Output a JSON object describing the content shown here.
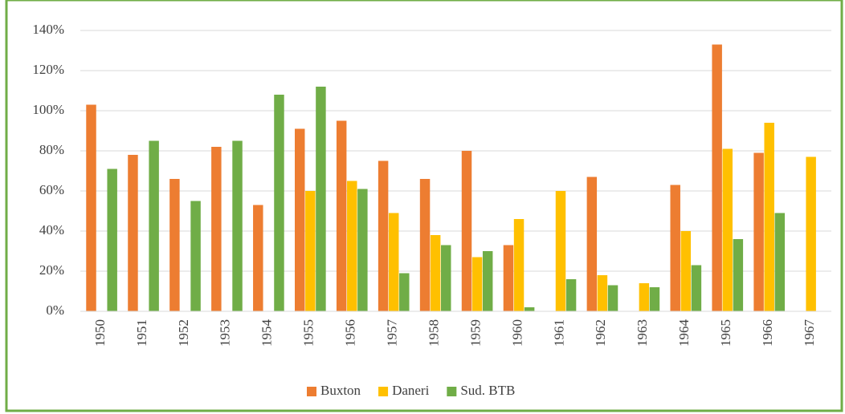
{
  "chart_data": {
    "type": "bar",
    "categories": [
      "1950",
      "1951",
      "1952",
      "1953",
      "1954",
      "1955",
      "1956",
      "1957",
      "1958",
      "1959",
      "1960",
      "1961",
      "1962",
      "1963",
      "1964",
      "1965",
      "1966",
      "1967"
    ],
    "series": [
      {
        "name": "Buxton",
        "color": "#ed7d31",
        "values": [
          103,
          78,
          66,
          82,
          53,
          91,
          95,
          75,
          66,
          80,
          33,
          null,
          67,
          null,
          63,
          133,
          79,
          null
        ]
      },
      {
        "name": "Daneri",
        "color": "#ffc000",
        "values": [
          null,
          null,
          null,
          null,
          null,
          60,
          65,
          49,
          38,
          27,
          46,
          60,
          18,
          14,
          40,
          81,
          94,
          77
        ]
      },
      {
        "name": "Sud. BTB",
        "color": "#70ad47",
        "values": [
          71,
          85,
          55,
          85,
          108,
          112,
          61,
          19,
          33,
          30,
          2,
          16,
          13,
          12,
          23,
          36,
          49,
          null
        ]
      }
    ],
    "ylim": [
      0,
      140
    ],
    "yticks": [
      {
        "value": 0,
        "label": "0%"
      },
      {
        "value": 20,
        "label": "20%"
      },
      {
        "value": 40,
        "label": "40%"
      },
      {
        "value": 60,
        "label": "60%"
      },
      {
        "value": 80,
        "label": "80%"
      },
      {
        "value": 100,
        "label": "100%"
      },
      {
        "value": 120,
        "label": "120%"
      },
      {
        "value": 140,
        "label": "140%"
      }
    ],
    "grid": true,
    "legend": "bottom"
  }
}
